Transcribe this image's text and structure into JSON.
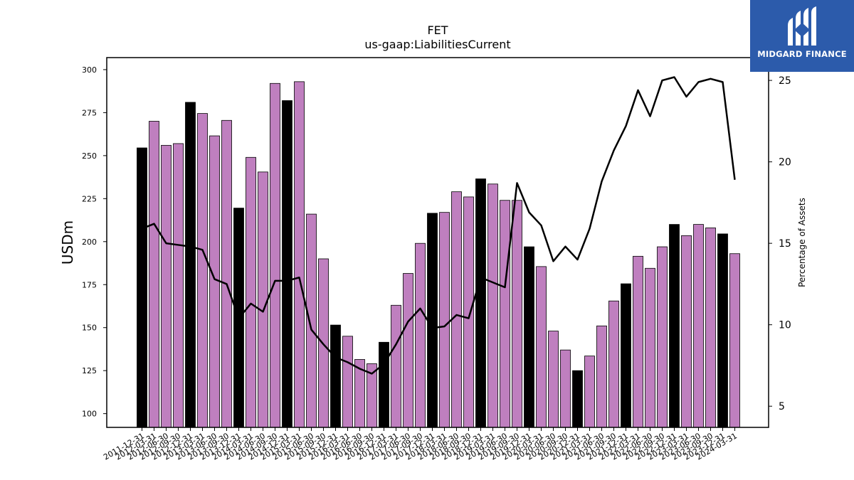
{
  "chart_data": {
    "type": "bar",
    "title": "FET",
    "subtitle": "us-gaap:LiabilitiesCurrent",
    "ylabel": "USDm",
    "y2label": "Percentage of Assets",
    "ylim": [
      92,
      307
    ],
    "y2lim": [
      3.7,
      26.4
    ],
    "yticks": [
      100,
      125,
      150,
      175,
      200,
      225,
      250,
      275,
      300
    ],
    "y2ticks": [
      5,
      10,
      15,
      20,
      25
    ],
    "categories": [
      "2011-12-31",
      "2012-03-31",
      "2012-06-30",
      "2012-09-30",
      "2012-12-31",
      "2013-03-31",
      "2013-06-30",
      "2013-09-30",
      "2013-12-31",
      "2014-03-31",
      "2014-06-30",
      "2014-09-30",
      "2014-12-31",
      "2015-03-31",
      "2015-06-30",
      "2015-09-30",
      "2015-12-31",
      "2016-03-31",
      "2016-06-30",
      "2016-09-30",
      "2016-12-31",
      "2017-03-31",
      "2017-06-30",
      "2017-09-30",
      "2017-12-31",
      "2018-03-31",
      "2018-06-30",
      "2018-09-30",
      "2018-12-31",
      "2019-03-31",
      "2019-06-30",
      "2019-09-30",
      "2019-12-31",
      "2020-03-31",
      "2020-06-30",
      "2020-09-30",
      "2020-12-31",
      "2021-03-31",
      "2021-06-30",
      "2021-09-30",
      "2021-12-31",
      "2022-03-31",
      "2022-06-30",
      "2022-09-30",
      "2022-12-31",
      "2023-03-31",
      "2023-06-30",
      "2023-09-30",
      "2023-12-31",
      "2024-03-31"
    ],
    "xtick_labels": [
      "2011-12-31",
      "2012-03-31",
      "2012-06-30",
      "2012-09-30",
      "2012-12-31",
      "2013-03-31",
      "2013-06-30",
      "2013-09-30",
      "2013-12-31",
      "2014-03-31",
      "2014-06-30",
      "2014-09-30",
      "2014-12-31",
      "2015-03-31",
      "2015-06-30",
      "2015-09-30",
      "2015-12-31",
      "2016-03-31",
      "2016-06-30",
      "2016-09-30",
      "2016-12-31",
      "2017-03-31",
      "2017-06-30",
      "2017-09-30",
      "2017-12-31",
      "2018-03-31",
      "2018-06-30",
      "2018-09-30",
      "2018-12-31",
      "2019-03-31",
      "2019-06-30",
      "2019-09-30",
      "2019-12-31",
      "2020-03-31",
      "2020-06-30",
      "2020-09-30",
      "2020-12-31",
      "2021-03-31",
      "2021-06-30",
      "2021-09-30",
      "2021-12-31",
      "2022-03-31",
      "2022-06-30",
      "2022-09-30",
      "2022-12-31",
      "2023-03-31",
      "2023-06-30",
      "2023-09-30",
      "2023-12-31",
      "2024-03-31"
    ],
    "series": [
      {
        "type": "bar",
        "values": [
          254.5,
          270,
          256,
          257,
          281,
          274.5,
          261.5,
          270.5,
          219.5,
          249,
          240.5,
          292,
          282,
          293,
          216,
          190,
          151.5,
          145,
          131.5,
          129,
          141.5,
          163,
          181.5,
          199,
          216.5,
          217,
          229,
          226,
          236.5,
          233.5,
          224,
          224,
          197,
          185.5,
          148,
          137,
          125,
          133.5,
          151,
          165.5,
          175.5,
          191.5,
          184.5,
          197,
          210,
          203.5,
          210,
          208,
          204.5,
          193
        ],
        "colors": [
          "#000000",
          "#bf7fbf",
          "#bf7fbf",
          "#bf7fbf",
          "#000000",
          "#bf7fbf",
          "#bf7fbf",
          "#bf7fbf",
          "#000000",
          "#bf7fbf",
          "#bf7fbf",
          "#bf7fbf",
          "#000000",
          "#bf7fbf",
          "#bf7fbf",
          "#bf7fbf",
          "#000000",
          "#bf7fbf",
          "#bf7fbf",
          "#bf7fbf",
          "#000000",
          "#bf7fbf",
          "#bf7fbf",
          "#bf7fbf",
          "#000000",
          "#bf7fbf",
          "#bf7fbf",
          "#bf7fbf",
          "#000000",
          "#bf7fbf",
          "#bf7fbf",
          "#bf7fbf",
          "#000000",
          "#bf7fbf",
          "#bf7fbf",
          "#bf7fbf",
          "#000000",
          "#bf7fbf",
          "#bf7fbf",
          "#bf7fbf",
          "#000000",
          "#bf7fbf",
          "#bf7fbf",
          "#bf7fbf",
          "#000000",
          "#bf7fbf",
          "#bf7fbf",
          "#bf7fbf",
          "#000000",
          "#bf7fbf"
        ]
      },
      {
        "type": "line",
        "axis": "right",
        "color": "#000000",
        "values": [
          15.9,
          16.2,
          15,
          14.9,
          14.8,
          14.6,
          12.8,
          12.5,
          10.4,
          11.3,
          10.8,
          12.7,
          12.7,
          12.9,
          9.7,
          8.8,
          8,
          7.7,
          7.3,
          7,
          7.6,
          8.8,
          10.2,
          11,
          9.8,
          9.9,
          10.6,
          10.4,
          12.9,
          12.6,
          12.3,
          18.7,
          16.9,
          16.1,
          13.9,
          14.8,
          14,
          15.9,
          18.8,
          20.7,
          22.2,
          24.4,
          22.8,
          25,
          25.2,
          24,
          24.9,
          25.1,
          24.9,
          18.9
        ]
      }
    ]
  },
  "logo": {
    "text": "MIDGARD FINANCE",
    "background": "#2c5bab",
    "icon": "midgard-logo-icon"
  }
}
